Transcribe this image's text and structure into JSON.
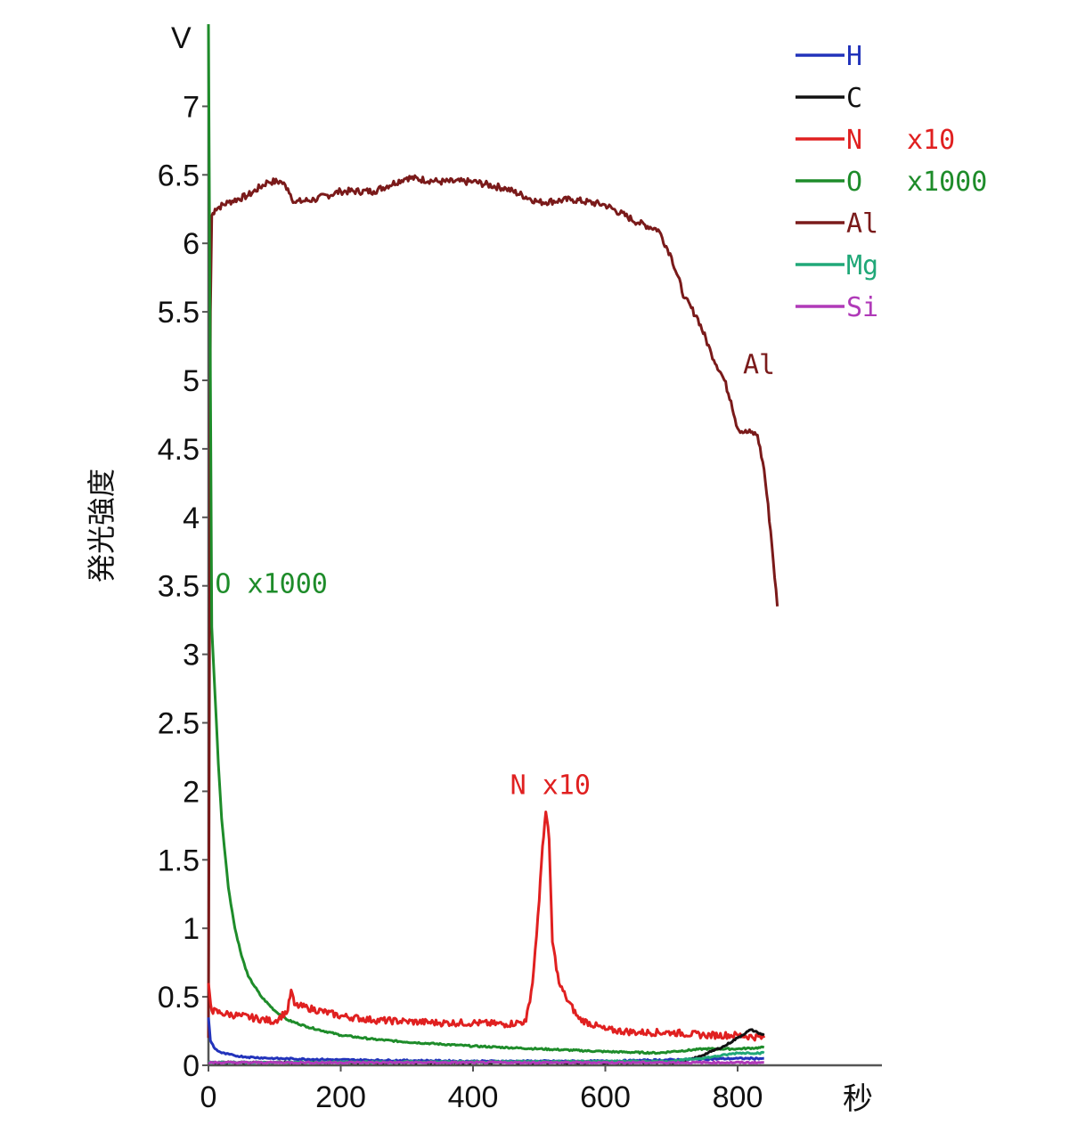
{
  "chart_data": {
    "type": "line",
    "y_unit": "V",
    "x_unit": "秒",
    "ylabel": "発光強度",
    "xlim": [
      0,
      1000
    ],
    "ylim": [
      0,
      7.5
    ],
    "x_ticks": [
      "0",
      "200",
      "400",
      "600",
      "800"
    ],
    "x_tick_values": [
      0,
      200,
      400,
      600,
      800
    ],
    "y_ticks": [
      "0",
      "0.5",
      "1",
      "1.5",
      "2",
      "2.5",
      "3",
      "3.5",
      "4",
      "4.5",
      "5",
      "5.5",
      "6",
      "6.5",
      "7"
    ],
    "y_tick_values": [
      0,
      0.5,
      1,
      1.5,
      2,
      2.5,
      3,
      3.5,
      4,
      4.5,
      5,
      5.5,
      6,
      6.5,
      7
    ],
    "legend_position": "top-right",
    "legend": [
      {
        "name": "H",
        "suffix": "",
        "color": "#2233bb"
      },
      {
        "name": "C",
        "suffix": "",
        "color": "#111111"
      },
      {
        "name": "N",
        "suffix": "x10",
        "color": "#e02020"
      },
      {
        "name": "O",
        "suffix": "x1000",
        "color": "#1e8c2a"
      },
      {
        "name": "Al",
        "suffix": "",
        "color": "#7a1a1a"
      },
      {
        "name": "Mg",
        "suffix": "",
        "color": "#20a878"
      },
      {
        "name": "Si",
        "suffix": "",
        "color": "#b03ab8"
      }
    ],
    "series": [
      {
        "name": "Al",
        "color": "#7a1a1a",
        "x": [
          0,
          3,
          5,
          10,
          30,
          60,
          90,
          110,
          120,
          130,
          160,
          200,
          250,
          300,
          350,
          400,
          450,
          500,
          550,
          600,
          650,
          680,
          700,
          720,
          740,
          760,
          780,
          790,
          800,
          810,
          820,
          830,
          840,
          850,
          860
        ],
        "y": [
          0.2,
          5.5,
          6.2,
          6.25,
          6.3,
          6.35,
          6.45,
          6.45,
          6.4,
          6.3,
          6.32,
          6.38,
          6.38,
          6.48,
          6.45,
          6.45,
          6.4,
          6.3,
          6.32,
          6.28,
          6.15,
          6.1,
          5.9,
          5.6,
          5.45,
          5.2,
          5.0,
          4.85,
          4.65,
          4.62,
          4.62,
          4.6,
          4.35,
          3.9,
          3.35
        ]
      },
      {
        "name": "O",
        "color": "#1e8c2a",
        "x": [
          0,
          5,
          10,
          15,
          20,
          30,
          40,
          50,
          60,
          80,
          100,
          120,
          150,
          200,
          250,
          300,
          400,
          500,
          600,
          680,
          700,
          750,
          800,
          840
        ],
        "y": [
          7.6,
          3.2,
          2.7,
          2.2,
          1.8,
          1.3,
          1.0,
          0.8,
          0.65,
          0.5,
          0.4,
          0.33,
          0.28,
          0.22,
          0.19,
          0.17,
          0.14,
          0.12,
          0.1,
          0.09,
          0.1,
          0.12,
          0.12,
          0.13
        ]
      },
      {
        "name": "N",
        "color": "#e02020",
        "x": [
          0,
          5,
          20,
          50,
          100,
          120,
          125,
          130,
          150,
          200,
          250,
          300,
          350,
          400,
          450,
          480,
          490,
          500,
          505,
          510,
          515,
          520,
          530,
          540,
          560,
          600,
          650,
          700,
          750,
          800,
          840
        ],
        "y": [
          0.6,
          0.4,
          0.38,
          0.36,
          0.32,
          0.4,
          0.55,
          0.44,
          0.42,
          0.36,
          0.33,
          0.32,
          0.31,
          0.31,
          0.3,
          0.32,
          0.6,
          1.2,
          1.6,
          1.85,
          1.65,
          0.9,
          0.6,
          0.5,
          0.34,
          0.26,
          0.24,
          0.24,
          0.22,
          0.22,
          0.2
        ]
      },
      {
        "name": "C",
        "color": "#111111",
        "x": [
          0,
          700,
          720,
          740,
          760,
          780,
          800,
          820,
          830,
          840
        ],
        "y": [
          0.02,
          0.02,
          0.03,
          0.06,
          0.1,
          0.14,
          0.2,
          0.26,
          0.24,
          0.22
        ]
      },
      {
        "name": "H",
        "color": "#2233bb",
        "x": [
          0,
          3,
          10,
          20,
          40,
          60,
          100,
          200,
          400,
          600,
          800,
          840
        ],
        "y": [
          0.35,
          0.18,
          0.12,
          0.09,
          0.07,
          0.06,
          0.05,
          0.04,
          0.03,
          0.03,
          0.05,
          0.05
        ]
      },
      {
        "name": "Mg",
        "color": "#20a878",
        "x": [
          0,
          700,
          760,
          800,
          840
        ],
        "y": [
          0.02,
          0.03,
          0.06,
          0.09,
          0.09
        ]
      },
      {
        "name": "Si",
        "color": "#b03ab8",
        "x": [
          0,
          200,
          400,
          600,
          840
        ],
        "y": [
          0.02,
          0.02,
          0.02,
          0.02,
          0.02
        ]
      }
    ],
    "annotations": [
      {
        "text": "Al",
        "color": "#7a1a1a",
        "x": 808,
        "y": 5.05
      },
      {
        "text": "O  x1000",
        "color": "#1e8c2a",
        "x": 10,
        "y": 3.45
      },
      {
        "text": "N  x10",
        "color": "#e02020",
        "x": 456,
        "y": 1.98
      }
    ]
  }
}
